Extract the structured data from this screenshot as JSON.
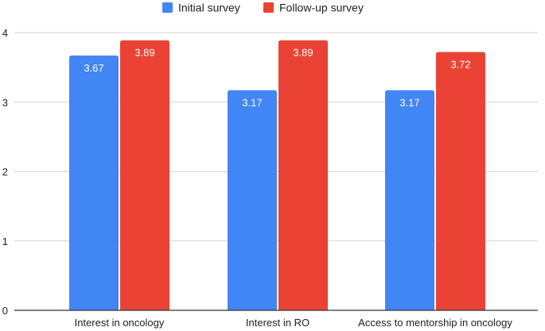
{
  "chart_data": {
    "type": "bar",
    "title": "",
    "xlabel": "",
    "ylabel": "",
    "categories": [
      "Interest in oncology",
      "Interest in RO",
      "Access to mentorship in oncology"
    ],
    "series": [
      {
        "name": "Initial survey",
        "color": "#4285F4",
        "values": [
          3.67,
          3.17,
          3.17
        ],
        "labels": [
          "3.67",
          "3.17",
          "3.17"
        ]
      },
      {
        "name": "Follow-up survey",
        "color": "#EA4335",
        "values": [
          3.89,
          3.89,
          3.72
        ],
        "labels": [
          "3.89",
          "3.89",
          "3.72"
        ]
      }
    ],
    "ylim": [
      0,
      4
    ],
    "yticks": [
      "0",
      "1",
      "2",
      "3",
      "4"
    ],
    "grid": true,
    "legend_position": "top-center"
  }
}
